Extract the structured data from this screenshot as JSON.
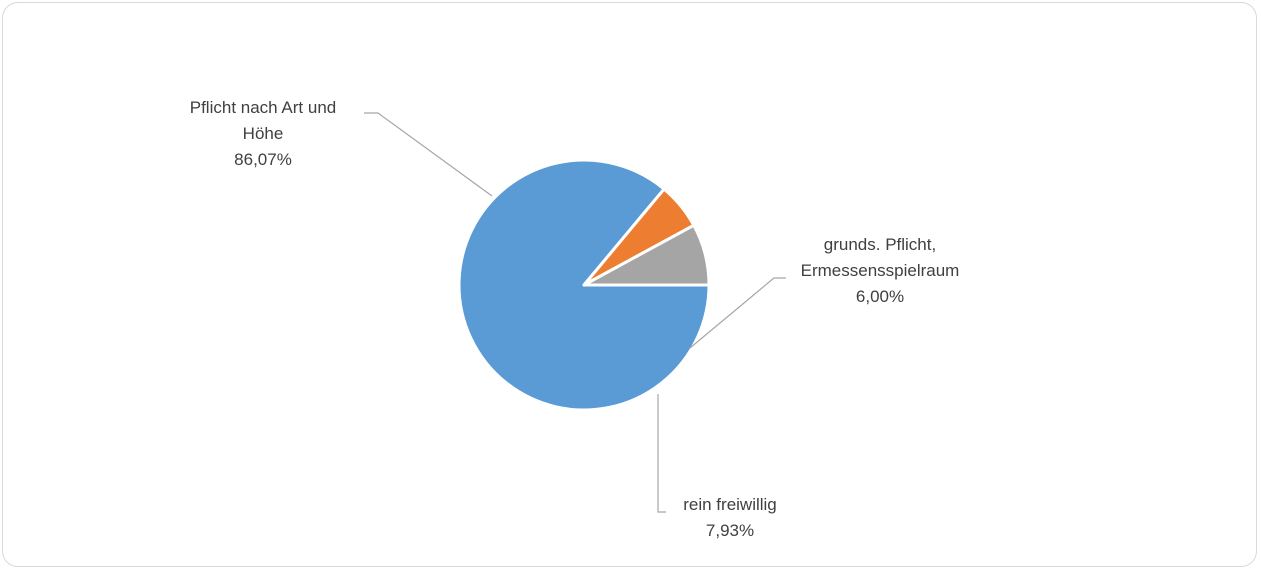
{
  "chart_data": {
    "type": "pie",
    "title": "",
    "start_angle_deg": 90,
    "direction": "clockwise",
    "slices": [
      {
        "label_lines": [
          "Pflicht nach Art und",
          "Höhe"
        ],
        "value_label": "86,07%",
        "value": 86.07,
        "color": "#5b9bd5",
        "name": "slice-pflicht-nach-art-und-hoehe"
      },
      {
        "label_lines": [
          "grunds. Pflicht,",
          "Ermessensspielraum"
        ],
        "value_label": "6,00%",
        "value": 6.0,
        "color": "#ed7d31",
        "name": "slice-grunds-pflicht"
      },
      {
        "label_lines": [
          "rein freiwillig"
        ],
        "value_label": "7,93%",
        "value": 7.93,
        "color": "#a5a5a5",
        "name": "slice-rein-freiwillig"
      }
    ],
    "leader_line_color": "#a6a6a6",
    "label_color": "#404040"
  }
}
